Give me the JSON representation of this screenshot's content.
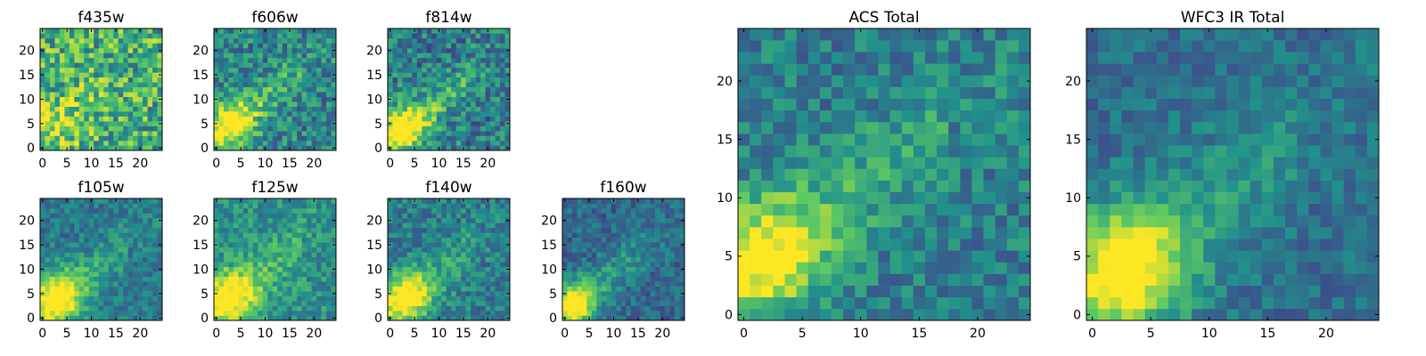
{
  "figure": {
    "colormap": "viridis",
    "colormap_stops": [
      "#440154",
      "#3b528b",
      "#21918c",
      "#5ec962",
      "#fde725"
    ],
    "axis_color": "#000000"
  },
  "chart_data": [
    {
      "type": "heatmap",
      "title": "f435w",
      "grid": false,
      "x_ticks": [
        "0",
        "5",
        "10",
        "15",
        "20"
      ],
      "y_ticks": [
        "0",
        "5",
        "10",
        "15",
        "20"
      ],
      "xlim": [
        0,
        25
      ],
      "ylim": [
        0,
        25
      ],
      "pixels": 25,
      "seed": 11,
      "blob_amplitude": 0.18,
      "blob_center": [
        3,
        5
      ],
      "blob_sigma": 4.0,
      "ridge_amplitude": 0.1,
      "ridge_sigma": 3.0,
      "noise": 0.3,
      "base": 0.62
    },
    {
      "type": "heatmap",
      "title": "f606w",
      "grid": false,
      "x_ticks": [
        "0",
        "5",
        "10",
        "15",
        "20"
      ],
      "y_ticks": [
        "0",
        "5",
        "10",
        "15",
        "20"
      ],
      "xlim": [
        0,
        25
      ],
      "ylim": [
        0,
        25
      ],
      "pixels": 25,
      "seed": 23,
      "blob_amplitude": 0.45,
      "blob_center": [
        3,
        5
      ],
      "blob_sigma": 3.5,
      "ridge_amplitude": 0.28,
      "ridge_sigma": 2.2,
      "noise": 0.22,
      "base": 0.45
    },
    {
      "type": "heatmap",
      "title": "f814w",
      "grid": false,
      "x_ticks": [
        "0",
        "5",
        "10",
        "15",
        "20"
      ],
      "y_ticks": [
        "0",
        "5",
        "10",
        "15",
        "20"
      ],
      "xlim": [
        0,
        25
      ],
      "ylim": [
        0,
        25
      ],
      "pixels": 25,
      "seed": 37,
      "blob_amplitude": 0.5,
      "blob_center": [
        3,
        4
      ],
      "blob_sigma": 3.5,
      "ridge_amplitude": 0.3,
      "ridge_sigma": 2.0,
      "noise": 0.22,
      "base": 0.42
    },
    {
      "type": "heatmap",
      "title": "f105w",
      "grid": false,
      "x_ticks": [
        "0",
        "5",
        "10",
        "15",
        "20"
      ],
      "y_ticks": [
        "0",
        "5",
        "10",
        "15",
        "20"
      ],
      "xlim": [
        0,
        25
      ],
      "ylim": [
        0,
        25
      ],
      "pixels": 25,
      "seed": 41,
      "blob_amplitude": 0.55,
      "blob_center": [
        3,
        4
      ],
      "blob_sigma": 3.8,
      "ridge_amplitude": 0.25,
      "ridge_sigma": 2.6,
      "noise": 0.14,
      "base": 0.4
    },
    {
      "type": "heatmap",
      "title": "f125w",
      "grid": false,
      "x_ticks": [
        "0",
        "5",
        "10",
        "15",
        "20"
      ],
      "y_ticks": [
        "0",
        "5",
        "10",
        "15",
        "20"
      ],
      "xlim": [
        0,
        25
      ],
      "ylim": [
        0,
        25
      ],
      "pixels": 25,
      "seed": 53,
      "blob_amplitude": 0.45,
      "blob_center": [
        3,
        4
      ],
      "blob_sigma": 4.0,
      "ridge_amplitude": 0.2,
      "ridge_sigma": 3.0,
      "noise": 0.16,
      "base": 0.5
    },
    {
      "type": "heatmap",
      "title": "f140w",
      "grid": false,
      "x_ticks": [
        "0",
        "5",
        "10",
        "15",
        "20"
      ],
      "y_ticks": [
        "0",
        "5",
        "10",
        "15",
        "20"
      ],
      "xlim": [
        0,
        25
      ],
      "ylim": [
        0,
        25
      ],
      "pixels": 25,
      "seed": 67,
      "blob_amplitude": 0.5,
      "blob_center": [
        3,
        4
      ],
      "blob_sigma": 3.8,
      "ridge_amplitude": 0.22,
      "ridge_sigma": 2.6,
      "noise": 0.16,
      "base": 0.42
    },
    {
      "type": "heatmap",
      "title": "f160w",
      "grid": false,
      "x_ticks": [
        "0",
        "5",
        "10",
        "15",
        "20"
      ],
      "y_ticks": [
        "0",
        "5",
        "10",
        "15",
        "20"
      ],
      "xlim": [
        0,
        25
      ],
      "ylim": [
        0,
        25
      ],
      "pixels": 25,
      "seed": 79,
      "blob_amplitude": 0.62,
      "blob_center": [
        2,
        3
      ],
      "blob_sigma": 3.0,
      "ridge_amplitude": 0.25,
      "ridge_sigma": 2.4,
      "noise": 0.14,
      "base": 0.34
    },
    {
      "type": "heatmap",
      "title": "ACS Total",
      "grid": false,
      "x_ticks": [
        "0",
        "5",
        "10",
        "15",
        "20"
      ],
      "y_ticks": [
        "0",
        "5",
        "10",
        "15",
        "20"
      ],
      "xlim": [
        0,
        25
      ],
      "ylim": [
        0,
        25
      ],
      "pixels": 25,
      "seed": 97,
      "blob_amplitude": 0.45,
      "blob_center": [
        2,
        5
      ],
      "blob_sigma": 3.6,
      "ridge_amplitude": 0.25,
      "ridge_sigma": 2.4,
      "noise": 0.16,
      "base": 0.42
    },
    {
      "type": "heatmap",
      "title": "WFC3 IR Total",
      "grid": false,
      "x_ticks": [
        "0",
        "5",
        "10",
        "15",
        "20"
      ],
      "y_ticks": [
        "0",
        "5",
        "10",
        "15",
        "20"
      ],
      "xlim": [
        0,
        25
      ],
      "ylim": [
        0,
        25
      ],
      "pixels": 25,
      "seed": 113,
      "blob_amplitude": 0.58,
      "blob_center": [
        3,
        4
      ],
      "blob_sigma": 3.6,
      "ridge_amplitude": 0.22,
      "ridge_sigma": 3.0,
      "noise": 0.12,
      "base": 0.36
    }
  ]
}
